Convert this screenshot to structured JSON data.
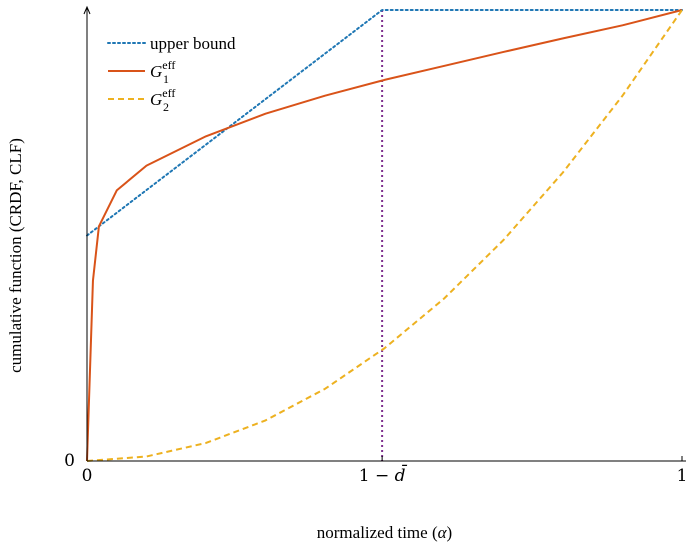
{
  "chart_data": {
    "type": "line",
    "xlabel": "normalized time (α)",
    "ylabel": "cumulative function (CRDF, CLF)",
    "xlim": [
      0,
      1
    ],
    "ylim": [
      0,
      1
    ],
    "x_ticks": [
      {
        "value": 0,
        "label": "0"
      },
      {
        "value": 0.496,
        "label": "1 − d̄"
      },
      {
        "value": 1,
        "label": "1"
      }
    ],
    "y_ticks": [
      {
        "value": 0,
        "label": "0"
      }
    ],
    "legend_position": "top-left",
    "series": [
      {
        "name": "upper bound",
        "style": "dotted",
        "color": "#1f77b4",
        "x": [
          0,
          0.496,
          1
        ],
        "y": [
          0.5,
          1,
          1
        ]
      },
      {
        "name": "G1eff",
        "style": "solid",
        "color": "#d95319",
        "x": [
          0,
          0.01,
          0.02,
          0.05,
          0.1,
          0.2,
          0.3,
          0.4,
          0.5,
          0.6,
          0.7,
          0.8,
          0.9,
          1.0
        ],
        "y": [
          0,
          0.4,
          0.52,
          0.6,
          0.655,
          0.72,
          0.77,
          0.81,
          0.845,
          0.876,
          0.907,
          0.937,
          0.966,
          1.0
        ]
      },
      {
        "name": "G2eff",
        "style": "dashed",
        "color": "#edb120",
        "x": [
          0,
          0.1,
          0.2,
          0.3,
          0.4,
          0.5,
          0.6,
          0.7,
          0.8,
          0.9,
          1.0
        ],
        "y": [
          0,
          0.01,
          0.04,
          0.09,
          0.16,
          0.25,
          0.36,
          0.49,
          0.64,
          0.81,
          1.0
        ]
      }
    ],
    "vertical_lines": [
      {
        "x": 0.496,
        "style": "dotted",
        "color": "#7e2f8e"
      }
    ],
    "legend": [
      {
        "label": "upper bound",
        "base": "upper bound",
        "sup": "",
        "sub": ""
      },
      {
        "label": "G1eff",
        "base": "G",
        "sup": "eff",
        "sub": "1"
      },
      {
        "label": "G2eff",
        "base": "G",
        "sup": "eff",
        "sub": "2"
      }
    ]
  }
}
